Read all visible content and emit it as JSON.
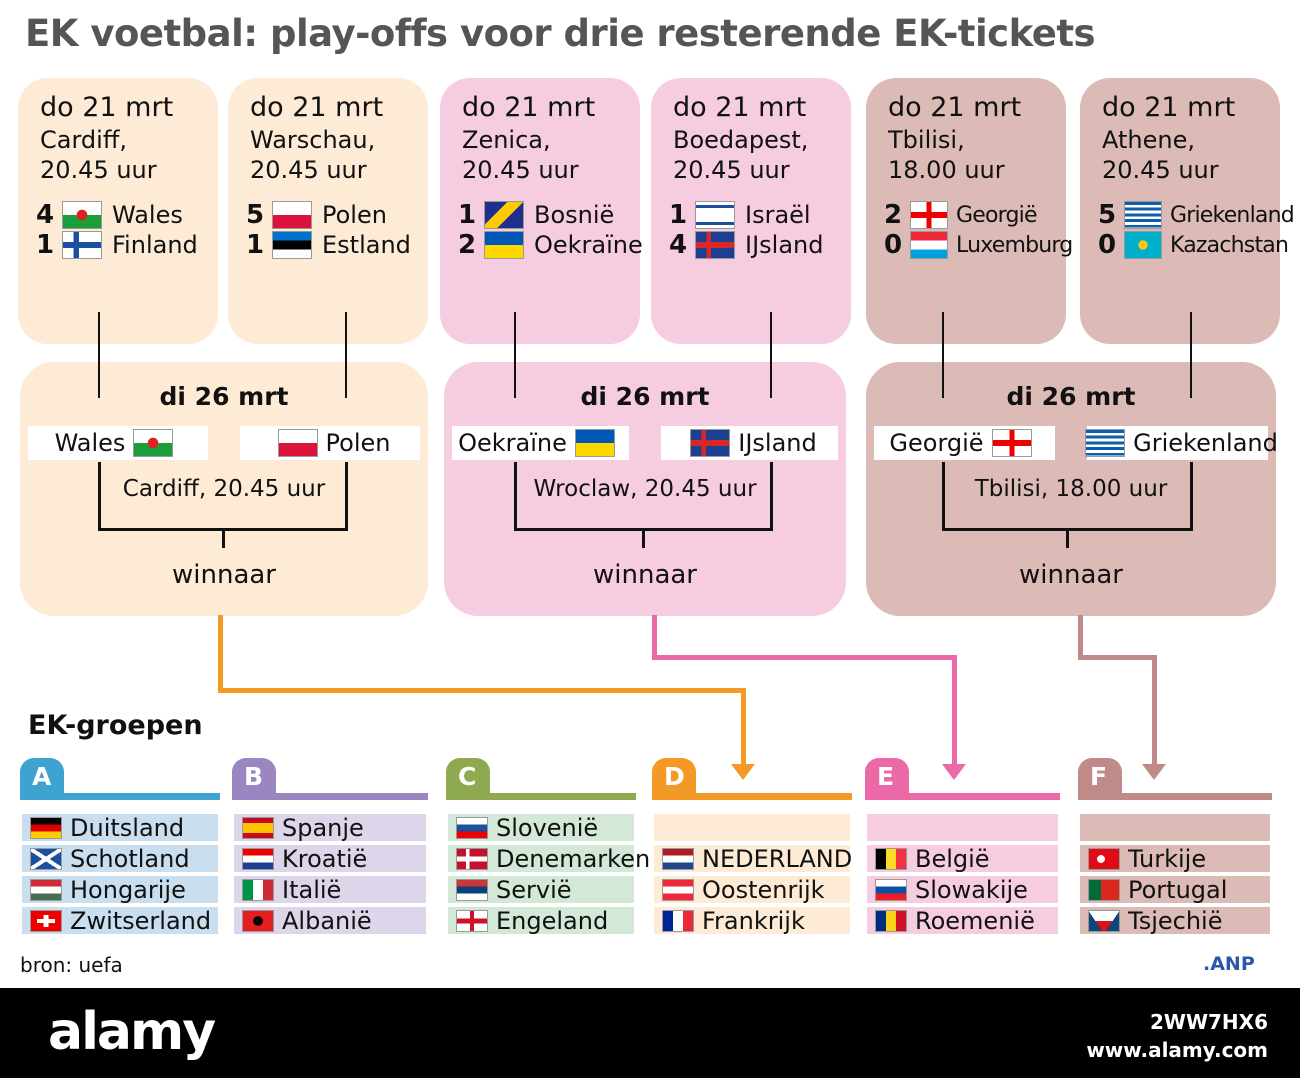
{
  "title": "EK voetbal: play-offs voor drie resterende EK-tickets",
  "colors": {
    "peach": "#fdebd6",
    "pink": "#f6cde0",
    "taupe": "#dcbab5",
    "orange": "#f39a26",
    "magenta": "#ec69a8",
    "brown": "#c08a88"
  },
  "semifinals": [
    {
      "date": "do 21 mrt",
      "city": "Cardiff,",
      "time": "20.45 uur",
      "teams": [
        {
          "score": "4",
          "name": "Wales",
          "flag": "wales"
        },
        {
          "score": "1",
          "name": "Finland",
          "flag": "finland"
        }
      ]
    },
    {
      "date": "do 21 mrt",
      "city": "Warschau,",
      "time": "20.45 uur",
      "teams": [
        {
          "score": "5",
          "name": "Polen",
          "flag": "poland"
        },
        {
          "score": "1",
          "name": "Estland",
          "flag": "estonia"
        }
      ]
    },
    {
      "date": "do 21 mrt",
      "city": "Zenica,",
      "time": "20.45 uur",
      "teams": [
        {
          "score": "1",
          "name": "Bosnië",
          "flag": "bosnia"
        },
        {
          "score": "2",
          "name": "Oekraïne",
          "flag": "ukraine"
        }
      ]
    },
    {
      "date": "do 21 mrt",
      "city": "Boedapest,",
      "time": "20.45 uur",
      "teams": [
        {
          "score": "1",
          "name": "Israël",
          "flag": "israel"
        },
        {
          "score": "4",
          "name": "IJsland",
          "flag": "iceland"
        }
      ]
    },
    {
      "date": "do 21 mrt",
      "city": "Tbilisi,",
      "time": "18.00 uur",
      "teams": [
        {
          "score": "2",
          "name": "Georgië",
          "flag": "georgia"
        },
        {
          "score": "0",
          "name": "Luxemburg",
          "flag": "luxembourg"
        }
      ]
    },
    {
      "date": "do 21 mrt",
      "city": "Athene,",
      "time": "20.45 uur",
      "teams": [
        {
          "score": "5",
          "name": "Griekenland",
          "flag": "greece"
        },
        {
          "score": "0",
          "name": "Kazachstan",
          "flag": "kazakhstan"
        }
      ]
    }
  ],
  "finals": [
    {
      "date": "di 26 mrt",
      "home": {
        "name": "Wales",
        "flag": "wales"
      },
      "away": {
        "name": "Polen",
        "flag": "poland"
      },
      "venue": "Cardiff, 20.45 uur",
      "winner": "winnaar"
    },
    {
      "date": "di 26 mrt",
      "home": {
        "name": "Oekraïne",
        "flag": "ukraine"
      },
      "away": {
        "name": "IJsland",
        "flag": "iceland"
      },
      "venue": "Wroclaw, 20.45 uur",
      "winner": "winnaar"
    },
    {
      "date": "di 26 mrt",
      "home": {
        "name": "Georgië",
        "flag": "georgia"
      },
      "away": {
        "name": "Griekenland",
        "flag": "greece"
      },
      "venue": "Tbilisi, 18.00 uur",
      "winner": "winnaar"
    }
  ],
  "groups_title": "EK-groepen",
  "groups": [
    {
      "letter": "A",
      "color": "#3fa3d1",
      "row": "#c9dff0",
      "teams": [
        {
          "name": "Duitsland",
          "flag": "germany"
        },
        {
          "name": "Schotland",
          "flag": "scotland"
        },
        {
          "name": "Hongarije",
          "flag": "hungary"
        },
        {
          "name": "Zwitserland",
          "flag": "switzerland"
        }
      ]
    },
    {
      "letter": "B",
      "color": "#9a86c0",
      "row": "#ddd5ea",
      "teams": [
        {
          "name": "Spanje",
          "flag": "spain"
        },
        {
          "name": "Kroatië",
          "flag": "croatia"
        },
        {
          "name": "Italië",
          "flag": "italy"
        },
        {
          "name": "Albanië",
          "flag": "albania"
        }
      ]
    },
    {
      "letter": "C",
      "color": "#8ea94f",
      "row": "#d3e8d6",
      "teams": [
        {
          "name": "Slovenië",
          "flag": "slovenia"
        },
        {
          "name": "Denemarken",
          "flag": "denmark"
        },
        {
          "name": "Servië",
          "flag": "serbia"
        },
        {
          "name": "Engeland",
          "flag": "england"
        }
      ]
    },
    {
      "letter": "D",
      "color": "#f39a26",
      "row": "#fdebd6",
      "teams": [
        {
          "name": "",
          "flag": ""
        },
        {
          "name": "NEDERLAND",
          "flag": "netherlands"
        },
        {
          "name": "Oostenrijk",
          "flag": "austria"
        },
        {
          "name": "Frankrijk",
          "flag": "france"
        }
      ]
    },
    {
      "letter": "E",
      "color": "#ec69a8",
      "row": "#f6cde0",
      "teams": [
        {
          "name": "",
          "flag": ""
        },
        {
          "name": "België",
          "flag": "belgium"
        },
        {
          "name": "Slowakije",
          "flag": "slovakia"
        },
        {
          "name": "Roemenië",
          "flag": "romania"
        }
      ]
    },
    {
      "letter": "F",
      "color": "#c08a88",
      "row": "#dcbab5",
      "teams": [
        {
          "name": "",
          "flag": ""
        },
        {
          "name": "Turkije",
          "flag": "turkey"
        },
        {
          "name": "Portugal",
          "flag": "portugal"
        },
        {
          "name": "Tsjechië",
          "flag": "czechia"
        }
      ]
    }
  ],
  "source": "bron: uefa",
  "logo": ".ANP",
  "watermark": {
    "brand": "alamy",
    "id": "2WW7HX6",
    "url": "www.alamy.com"
  }
}
